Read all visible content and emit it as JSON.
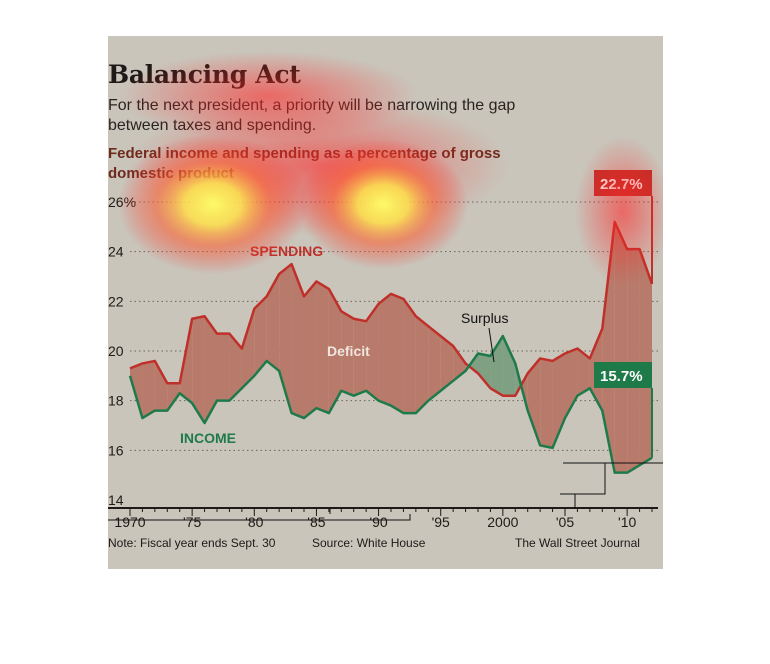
{
  "chart_data": {
    "type": "line",
    "title": "Balancing Act",
    "subtitle": "For the next president, a priority will be narrowing the gap between taxes and spending.",
    "description": "Federal income and spending as a percentage of gross domestic product",
    "x_tick_labels": [
      "1970",
      "'75",
      "'80",
      "'85",
      "'90",
      "'95",
      "2000",
      "'05",
      "'10"
    ],
    "y_tick_labels": [
      "14",
      "16",
      "18",
      "20",
      "22",
      "24",
      "26%"
    ],
    "y_ticks": [
      14,
      16,
      18,
      20,
      22,
      24,
      26
    ],
    "ylim": [
      14,
      26
    ],
    "xlim": [
      1970,
      2012
    ],
    "grid": "horizontal dotted",
    "x": [
      1970,
      1971,
      1972,
      1973,
      1974,
      1975,
      1976,
      1977,
      1978,
      1979,
      1980,
      1981,
      1982,
      1983,
      1984,
      1985,
      1986,
      1987,
      1988,
      1989,
      1990,
      1991,
      1992,
      1993,
      1994,
      1995,
      1996,
      1997,
      1998,
      1999,
      2000,
      2001,
      2002,
      2003,
      2004,
      2005,
      2006,
      2007,
      2008,
      2009,
      2010,
      2011,
      2012
    ],
    "series": [
      {
        "name": "SPENDING",
        "color": "#c0302a",
        "values": [
          19.3,
          19.5,
          19.6,
          18.7,
          18.7,
          21.3,
          21.4,
          20.7,
          20.7,
          20.1,
          21.7,
          22.2,
          23.1,
          23.5,
          22.2,
          22.8,
          22.5,
          21.6,
          21.3,
          21.2,
          21.9,
          22.3,
          22.1,
          21.4,
          21.0,
          20.6,
          20.2,
          19.5,
          19.1,
          18.5,
          18.2,
          18.2,
          19.1,
          19.7,
          19.6,
          19.9,
          20.1,
          19.7,
          20.9,
          25.2,
          24.1,
          24.1,
          22.7
        ]
      },
      {
        "name": "INCOME",
        "color": "#1f7a4a",
        "values": [
          19.0,
          17.3,
          17.6,
          17.6,
          18.3,
          17.9,
          17.1,
          18.0,
          18.0,
          18.5,
          19.0,
          19.6,
          19.2,
          17.5,
          17.3,
          17.7,
          17.5,
          18.4,
          18.2,
          18.4,
          18.0,
          17.8,
          17.5,
          17.5,
          18.0,
          18.4,
          18.8,
          19.2,
          19.9,
          19.8,
          20.6,
          19.5,
          17.6,
          16.2,
          16.1,
          17.3,
          18.2,
          18.5,
          17.6,
          15.1,
          15.1,
          15.4,
          15.7
        ]
      }
    ],
    "annotations": {
      "spending_label": "SPENDING",
      "income_label": "INCOME",
      "deficit_label": "Deficit",
      "surplus_label": "Surplus",
      "spending_end_value": "22.7%",
      "income_end_value": "15.7%"
    },
    "colors": {
      "background": "#c9c5bb",
      "deficit_fill": "#b87a6a",
      "surplus_fill": "#7fa083",
      "spending_callout_bg": "#c0302a",
      "income_callout_bg": "#1f7a4a"
    }
  },
  "footer": {
    "note": "Note: Fiscal year ends Sept. 30",
    "source": "Source: White House",
    "credit": "The Wall Street Journal"
  }
}
